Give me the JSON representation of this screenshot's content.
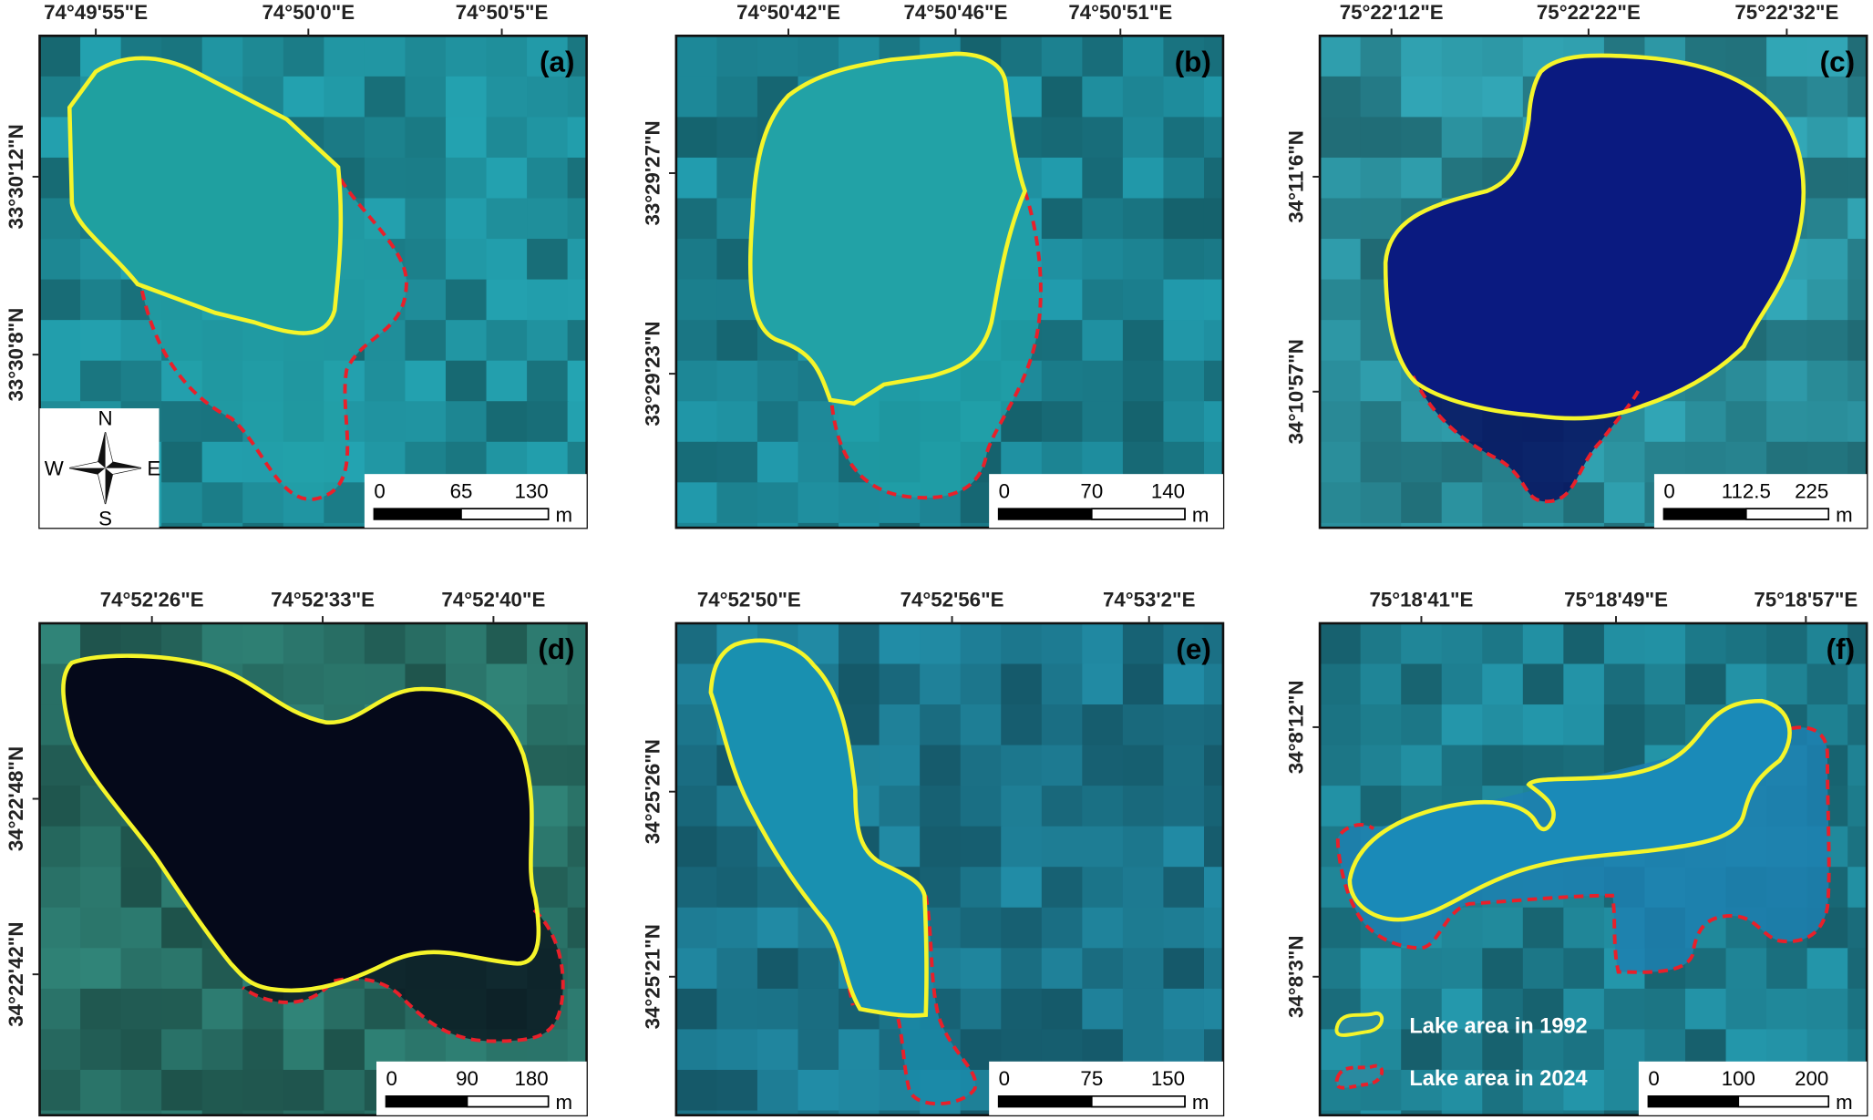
{
  "panels": [
    {
      "label": "(a)",
      "lon_ticks": [
        "74°49'55\"E",
        "74°50'0\"E",
        "74°50'5\"E"
      ],
      "lat_ticks": [
        "33°30'12\"N",
        "33°30'8\"N"
      ],
      "scale_ticks": [
        "0",
        "65",
        "130"
      ],
      "scale_unit": "m"
    },
    {
      "label": "(b)",
      "lon_ticks": [
        "74°50'42\"E",
        "74°50'46\"E",
        "74°50'51\"E"
      ],
      "lat_ticks": [
        "33°29'27\"N",
        "33°29'23\"N"
      ],
      "scale_ticks": [
        "0",
        "70",
        "140"
      ],
      "scale_unit": "m"
    },
    {
      "label": "(c)",
      "lon_ticks": [
        "75°22'12\"E",
        "75°22'22\"E",
        "75°22'32\"E"
      ],
      "lat_ticks": [
        "34°11'6\"N",
        "34°10'57\"N"
      ],
      "scale_ticks": [
        "0",
        "112.5",
        "225"
      ],
      "scale_unit": "m"
    },
    {
      "label": "(d)",
      "lon_ticks": [
        "74°52'26\"E",
        "74°52'33\"E",
        "74°52'40\"E"
      ],
      "lat_ticks": [
        "34°22'48\"N",
        "34°22'42\"N"
      ],
      "scale_ticks": [
        "0",
        "90",
        "180"
      ],
      "scale_unit": "m"
    },
    {
      "label": "(e)",
      "lon_ticks": [
        "74°52'50\"E",
        "74°52'56\"E",
        "74°53'2\"E"
      ],
      "lat_ticks": [
        "34°25'26\"N",
        "34°25'21\"N"
      ],
      "scale_ticks": [
        "0",
        "75",
        "150"
      ],
      "scale_unit": "m"
    },
    {
      "label": "(f)",
      "lon_ticks": [
        "75°18'41\"E",
        "75°18'49\"E",
        "75°18'57\"E"
      ],
      "lat_ticks": [
        "34°8'12\"N",
        "34°8'3\"N"
      ],
      "scale_ticks": [
        "0",
        "100",
        "200"
      ],
      "scale_unit": "m"
    }
  ],
  "compass": {
    "north": "N",
    "east": "E",
    "south": "S",
    "west": "W"
  },
  "legend": [
    "Lake area in 1992",
    "Lake area in 2024"
  ]
}
